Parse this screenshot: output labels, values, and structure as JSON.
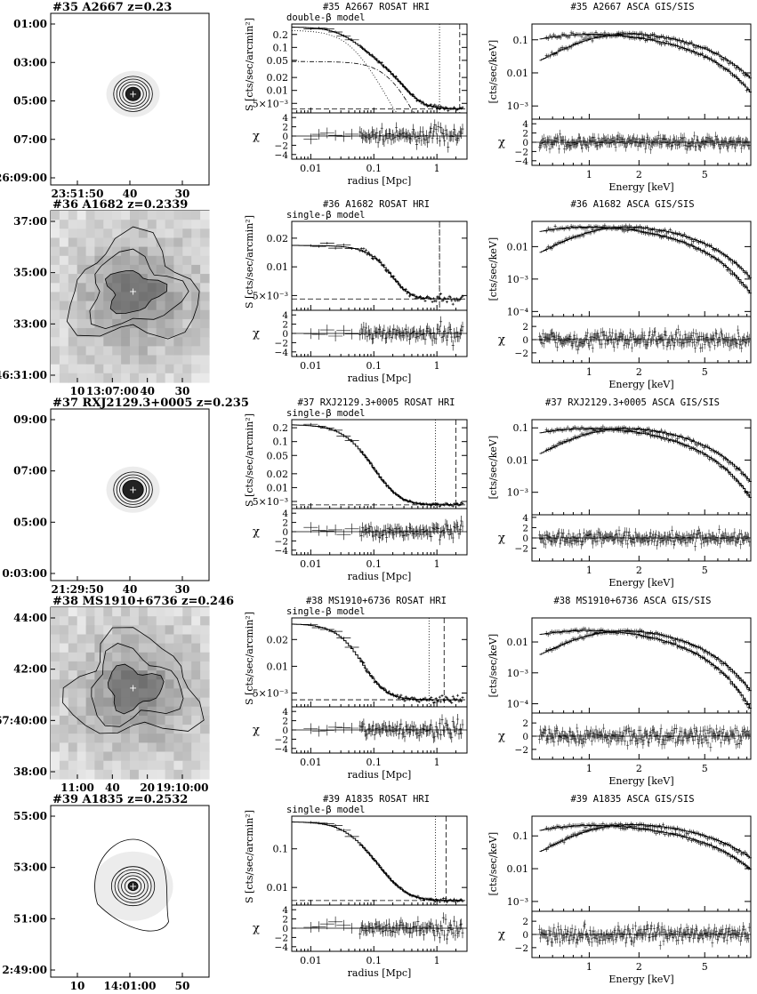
{
  "chart_data": [
    {
      "id": "35",
      "name": "A2667",
      "z": "0.23",
      "type": "scatter",
      "image": {
        "title": "#35 A2667 z=0.23",
        "yticks": [
          "01:00",
          "03:00",
          "05:00",
          "07:00",
          "-26:09:00"
        ],
        "xticks": [
          "23:51:50",
          "40",
          "30"
        ],
        "style": "compact",
        "contour_rings": 5,
        "knots": 0
      },
      "profile": {
        "title": "#35 A2667 ROSAT HRI",
        "model_label": "double-β model",
        "ylabel": "S [cts/sec/arcmin²]",
        "xlabel": "radius [Mpc]",
        "xscale": "log",
        "yscale": "log",
        "xlim": [
          0.005,
          3.0
        ],
        "ylim": [
          0.003,
          0.35
        ],
        "yticks": [
          "0.2",
          "0.1",
          "0.05",
          "0.02",
          "0.01",
          "5×10⁻³"
        ],
        "ytick_values": [
          0.2,
          0.1,
          0.05,
          0.02,
          0.01,
          0.005
        ],
        "xticks": [
          "0.01",
          "0.1",
          "1"
        ],
        "xtick_values": [
          0.01,
          0.1,
          1
        ],
        "resid_yticks": [
          "4",
          "2",
          "0",
          "−2",
          "−4"
        ],
        "resid_ylim": [
          -5,
          5
        ],
        "resid_ylabel": "χ",
        "S0": 0.25,
        "rc": 0.045,
        "beta": 0.62,
        "bkg": 0.0037,
        "second_component": {
          "S0": 0.047,
          "rc": 0.2,
          "beta": 0.7
        },
        "r_dotted": 1.1,
        "r_dashed": 2.3,
        "rmax": 2.6
      },
      "spectrum": {
        "title": "#35 A2667 ASCA GIS/SIS",
        "ylabel": "[cts/sec/keV]",
        "xlabel": "Energy [keV]",
        "xscale": "log",
        "yscale": "log",
        "xlim": [
          0.45,
          9.5
        ],
        "ylim": [
          0.0004,
          0.3
        ],
        "yticks": [
          "0.1",
          "0.01",
          "10⁻³"
        ],
        "ytick_values": [
          0.1,
          0.01,
          0.001
        ],
        "xticks": [
          "1",
          "2",
          "5"
        ],
        "xtick_values": [
          1,
          2,
          5
        ],
        "resid_yticks": [
          "4",
          "2",
          "0",
          "−2",
          "−4"
        ],
        "resid_ylim": [
          -5,
          5
        ],
        "resid_ylabel": "χ",
        "A": 0.18,
        "Ecut": 2.7,
        "low_start": 0.045,
        "soft_start": 0.06,
        "kT": 6.5
      }
    },
    {
      "id": "36",
      "name": "A1682",
      "z": "0.2339",
      "type": "scatter",
      "image": {
        "title": "#36 A1682 z=0.2339",
        "yticks": [
          "37:00",
          "35:00",
          "33:00",
          "46:31:00"
        ],
        "xticks": [
          "10",
          "13:07:00",
          "40",
          "30"
        ],
        "style": "diffuse",
        "contour_rings": 3,
        "knots": 0
      },
      "profile": {
        "title": "#36 A1682 ROSAT HRI",
        "model_label": "single-β model",
        "ylabel": "S [cts/sec/arcmin²]",
        "xlabel": "radius [Mpc]",
        "xscale": "log",
        "yscale": "log",
        "xlim": [
          0.005,
          3.0
        ],
        "ylim": [
          0.0035,
          0.03
        ],
        "yticks": [
          "0.02",
          "0.01",
          "5×10⁻³"
        ],
        "ytick_values": [
          0.02,
          0.01,
          0.005
        ],
        "xticks": [
          "0.01",
          "0.1",
          "1"
        ],
        "xtick_values": [
          0.01,
          0.1,
          1
        ],
        "resid_yticks": [
          "4",
          "2",
          "0",
          "−2",
          "−4"
        ],
        "resid_ylim": [
          -5,
          5
        ],
        "resid_ylabel": "χ",
        "S0": 0.0122,
        "rc": 0.22,
        "beta": 0.9,
        "bkg": 0.0046,
        "r_dotted": 1.1,
        "r_dashed": 1.1,
        "rmax": 2.6
      },
      "spectrum": {
        "title": "#36 A1682 ASCA GIS/SIS",
        "ylabel": "[cts/sec/keV]",
        "xlabel": "Energy [keV]",
        "xscale": "log",
        "yscale": "log",
        "xlim": [
          0.45,
          9.5
        ],
        "ylim": [
          7e-05,
          0.06
        ],
        "yticks": [
          "0.01",
          "10⁻³",
          "10⁻⁴"
        ],
        "ytick_values": [
          0.01,
          0.001,
          0.0001
        ],
        "xticks": [
          "1",
          "2",
          "5"
        ],
        "xtick_values": [
          1,
          2,
          5
        ],
        "resid_yticks": [
          "2",
          "0",
          "−2"
        ],
        "resid_ylim": [
          -3.5,
          3.5
        ],
        "resid_ylabel": "χ",
        "A": 0.05,
        "Ecut": 2.3,
        "low_start": 0.012,
        "soft_start": 0.017,
        "kT": 5.8
      }
    },
    {
      "id": "37",
      "name": "RXJ2129.3+0005",
      "z": "0.235",
      "type": "scatter",
      "image": {
        "title": "#37 RXJ2129.3+0005 z=0.235",
        "yticks": [
          "09:00",
          "07:00",
          "05:00",
          "0:03:00"
        ],
        "xticks": [
          "21:29:50",
          "40",
          "30"
        ],
        "style": "compact",
        "contour_rings": 4,
        "knots": 0
      },
      "profile": {
        "title": "#37 RXJ2129.3+0005 ROSAT HRI",
        "model_label": "single-β model",
        "ylabel": "S [cts/sec/arcmin²]",
        "xlabel": "radius [Mpc]",
        "xscale": "log",
        "yscale": "log",
        "xlim": [
          0.005,
          3.0
        ],
        "ylim": [
          0.0035,
          0.3
        ],
        "yticks": [
          "0.2",
          "0.1",
          "0.05",
          "0.02",
          "0.01",
          "5×10⁻³"
        ],
        "ytick_values": [
          0.2,
          0.1,
          0.05,
          0.02,
          0.01,
          0.005
        ],
        "xticks": [
          "0.01",
          "0.1",
          "1"
        ],
        "xtick_values": [
          0.01,
          0.1,
          1
        ],
        "resid_yticks": [
          "4",
          "2",
          "0",
          "−2",
          "−4"
        ],
        "resid_ylim": [
          -5,
          5
        ],
        "resid_ylabel": "χ",
        "S0": 0.23,
        "rc": 0.048,
        "beta": 0.63,
        "bkg": 0.0042,
        "r_dotted": 0.95,
        "r_dashed": 2.0,
        "rmax": 2.6
      },
      "spectrum": {
        "title": "#37 RXJ2129.3+0005 ASCA GIS/SIS",
        "ylabel": "[cts/sec/keV]",
        "xlabel": "Energy [keV]",
        "xscale": "log",
        "yscale": "log",
        "xlim": [
          0.45,
          9.5
        ],
        "ylim": [
          0.0002,
          0.18
        ],
        "yticks": [
          "0.1",
          "0.01",
          "10⁻³"
        ],
        "ytick_values": [
          0.1,
          0.01,
          0.001
        ],
        "xticks": [
          "1",
          "2",
          "5"
        ],
        "xtick_values": [
          1,
          2,
          5
        ],
        "resid_yticks": [
          "4",
          "2",
          "0",
          "−2"
        ],
        "resid_ylim": [
          -4.5,
          4.5
        ],
        "resid_ylabel": "χ",
        "A": 0.12,
        "Ecut": 2.4,
        "low_start": 0.018,
        "soft_start": 0.022,
        "kT": 5.6
      }
    },
    {
      "id": "38",
      "name": "MS1910+6736",
      "z": "0.246",
      "type": "scatter",
      "image": {
        "title": "#38 MS1910+6736 z=0.246",
        "yticks": [
          "44:00",
          "42:00",
          "67:40:00",
          "38:00"
        ],
        "xticks": [
          "11:00",
          "40",
          "20",
          "19:10:00"
        ],
        "style": "diffuse",
        "contour_rings": 3,
        "knots": 0
      },
      "profile": {
        "title": "#38 MS1910+6736 ROSAT HRI",
        "model_label": "single-β model",
        "ylabel": "S [cts/sec/arcmin²]",
        "xlabel": "radius [Mpc]",
        "xscale": "log",
        "yscale": "log",
        "xlim": [
          0.005,
          3.0
        ],
        "ylim": [
          0.0035,
          0.035
        ],
        "yticks": [
          "0.02",
          "0.01",
          "5×10⁻³"
        ],
        "ytick_values": [
          0.02,
          0.01,
          0.005
        ],
        "xticks": [
          "0.01",
          "0.1",
          "1"
        ],
        "xtick_values": [
          0.01,
          0.1,
          1
        ],
        "resid_yticks": [
          "4",
          "2",
          "0",
          "−2",
          "−4"
        ],
        "resid_ylim": [
          -5,
          5
        ],
        "resid_ylabel": "χ",
        "S0": 0.026,
        "rc": 0.05,
        "beta": 0.62,
        "bkg": 0.0042,
        "r_dotted": 0.75,
        "r_dashed": 1.3,
        "rmax": 2.6
      },
      "spectrum": {
        "title": "#38 MS1910+6736 ASCA GIS/SIS",
        "ylabel": "[cts/sec/keV]",
        "xlabel": "Energy [keV]",
        "xscale": "log",
        "yscale": "log",
        "xlim": [
          0.45,
          9.5
        ],
        "ylim": [
          5e-05,
          0.06
        ],
        "yticks": [
          "0.01",
          "10⁻³",
          "10⁻⁴"
        ],
        "ytick_values": [
          0.01,
          0.001,
          0.0001
        ],
        "xticks": [
          "1",
          "2",
          "5"
        ],
        "xtick_values": [
          1,
          2,
          5
        ],
        "resid_yticks": [
          "2",
          "0",
          "−2"
        ],
        "resid_ylim": [
          -3.5,
          3.5
        ],
        "resid_ylabel": "χ",
        "A": 0.03,
        "Ecut": 2.2,
        "low_start": 0.0016,
        "soft_start": 0.004,
        "kT": 5.0
      }
    },
    {
      "id": "39",
      "name": "A1835",
      "z": "0.2532",
      "type": "scatter",
      "image": {
        "title": "#39 A1835 z=0.2532",
        "yticks": [
          "55:00",
          "53:00",
          "51:00",
          "2:49:00"
        ],
        "xticks": [
          "10",
          "14:01:00",
          "50"
        ],
        "style": "extended",
        "contour_rings": 6,
        "knots": 0
      },
      "profile": {
        "title": "#39 A1835 ROSAT HRI",
        "model_label": "single-β model",
        "ylabel": "S [cts/sec/arcmin²]",
        "xlabel": "radius [Mpc]",
        "xscale": "log",
        "yscale": "log",
        "xlim": [
          0.005,
          3.0
        ],
        "ylim": [
          0.0035,
          0.7
        ],
        "yticks": [
          "0.1",
          "0.01"
        ],
        "ytick_values": [
          0.1,
          0.01
        ],
        "xticks": [
          "0.01",
          "0.1",
          "1"
        ],
        "xtick_values": [
          0.01,
          0.1,
          1
        ],
        "resid_yticks": [
          "4",
          "2",
          "0",
          "−2",
          "−4"
        ],
        "resid_ylim": [
          -5,
          5
        ],
        "resid_ylabel": "χ",
        "S0": 0.5,
        "rc": 0.045,
        "beta": 0.6,
        "bkg": 0.0046,
        "r_dotted": 0.95,
        "r_dashed": 1.4,
        "rmax": 2.6
      },
      "spectrum": {
        "title": "#39 A1835 ASCA GIS/SIS",
        "ylabel": "[cts/sec/keV]",
        "xlabel": "Energy [keV]",
        "xscale": "log",
        "yscale": "log",
        "xlim": [
          0.45,
          9.5
        ],
        "ylim": [
          0.0005,
          0.4
        ],
        "yticks": [
          "0.1",
          "0.01",
          "10⁻³"
        ],
        "ytick_values": [
          0.1,
          0.01,
          0.001
        ],
        "xticks": [
          "1",
          "2",
          "5"
        ],
        "xtick_values": [
          1,
          2,
          5
        ],
        "resid_yticks": [
          "2",
          "0",
          "−2"
        ],
        "resid_ylim": [
          -3.5,
          3.5
        ],
        "resid_ylabel": "χ",
        "A": 0.25,
        "Ecut": 2.7,
        "low_start": 0.05,
        "soft_start": 0.07,
        "kT": 8.0
      }
    }
  ]
}
